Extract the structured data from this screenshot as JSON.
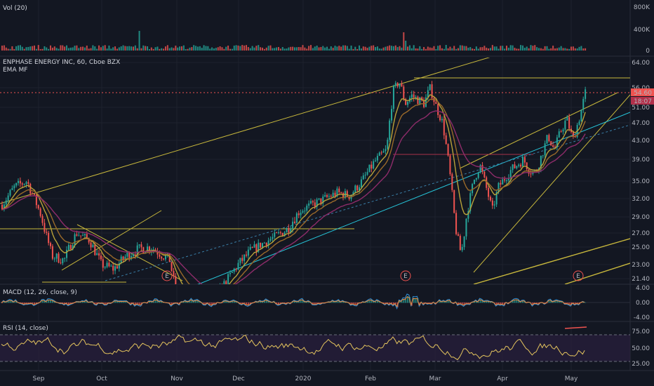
{
  "chart_data": {
    "type": "candlestick",
    "title": "ENPHASE ENERGY INC, 60, Cboe BZX",
    "overlay_label": "EMA MF",
    "x_labels": [
      "Sep",
      "Oct",
      "Nov",
      "Dec",
      "2020",
      "Feb",
      "Mar",
      "Apr",
      "May"
    ],
    "price": {
      "ticks": [
        "64.00",
        "56.00",
        "51.00",
        "47.00",
        "43.00",
        "39.00",
        "35.00",
        "32.00",
        "29.00",
        "27.00",
        "25.00",
        "23.00",
        "21.40"
      ],
      "last_price": "54.60",
      "countdown": "18:07",
      "earnings_marker": "E",
      "trend": [
        [
          0,
          31
        ],
        [
          0.02,
          34
        ],
        [
          0.04,
          35
        ],
        [
          0.06,
          30
        ],
        [
          0.08,
          24
        ],
        [
          0.1,
          23.5
        ],
        [
          0.12,
          27
        ],
        [
          0.14,
          26
        ],
        [
          0.16,
          23
        ],
        [
          0.18,
          22.5
        ],
        [
          0.2,
          24
        ],
        [
          0.22,
          24.8
        ],
        [
          0.24,
          25
        ],
        [
          0.26,
          24
        ],
        [
          0.27,
          23.5
        ],
        [
          0.28,
          20
        ],
        [
          0.3,
          18.5
        ],
        [
          0.32,
          18
        ],
        [
          0.34,
          19
        ],
        [
          0.36,
          21
        ],
        [
          0.38,
          23
        ],
        [
          0.4,
          24.5
        ],
        [
          0.42,
          25.5
        ],
        [
          0.44,
          26.5
        ],
        [
          0.46,
          27.5
        ],
        [
          0.48,
          30
        ],
        [
          0.5,
          31
        ],
        [
          0.52,
          32
        ],
        [
          0.54,
          33
        ],
        [
          0.56,
          32.5
        ],
        [
          0.58,
          35
        ],
        [
          0.6,
          38.5
        ],
        [
          0.62,
          41
        ],
        [
          0.63,
          55
        ],
        [
          0.64,
          58
        ],
        [
          0.65,
          52
        ],
        [
          0.66,
          54
        ],
        [
          0.68,
          52
        ],
        [
          0.69,
          56
        ],
        [
          0.7,
          51
        ],
        [
          0.71,
          47
        ],
        [
          0.72,
          38
        ],
        [
          0.73,
          28
        ],
        [
          0.74,
          24
        ],
        [
          0.75,
          30
        ],
        [
          0.76,
          35
        ],
        [
          0.77,
          38
        ],
        [
          0.78,
          34
        ],
        [
          0.79,
          30
        ],
        [
          0.8,
          34
        ],
        [
          0.82,
          37
        ],
        [
          0.84,
          39
        ],
        [
          0.85,
          37
        ],
        [
          0.86,
          36.5
        ],
        [
          0.87,
          40
        ],
        [
          0.88,
          44
        ],
        [
          0.89,
          41
        ],
        [
          0.9,
          45
        ],
        [
          0.91,
          48
        ],
        [
          0.92,
          43
        ],
        [
          0.93,
          48
        ],
        [
          0.94,
          54.6
        ]
      ]
    },
    "volume": {
      "label": "Vol (20)",
      "ticks": [
        "800K",
        "400K",
        "0"
      ]
    },
    "macd": {
      "label": "MACD (12, 26, close, 9)",
      "ticks": [
        "4.00",
        "0.00",
        "-4.00"
      ]
    },
    "rsi": {
      "label": "RSI (14, close)",
      "ticks": [
        "75.00",
        "50.00",
        "25.00"
      ]
    },
    "colors": {
      "up": "#26a69a",
      "down": "#ef5350",
      "accent": "#c8b83c",
      "trendline": "#26c6da",
      "ema": "#8e2c6a",
      "rsi": "#e5c55e",
      "last_price": "#ef5350"
    }
  }
}
